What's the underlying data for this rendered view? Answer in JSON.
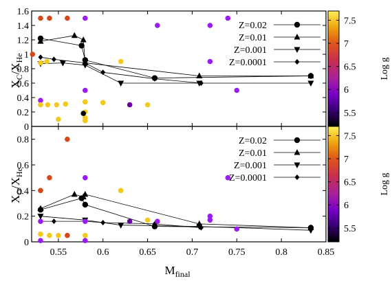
{
  "chart_data": [
    {
      "type": "scatter",
      "panel": "top",
      "ylabel": "X_C/X_He",
      "ylabel_main": "X",
      "ylabel_sub1": "C",
      "ylabel_sep": "/X",
      "ylabel_sub2": "He",
      "xlim": [
        0.52,
        0.85
      ],
      "ylim": [
        0,
        1.6
      ],
      "yticks": [
        "0",
        "0.2",
        "0.4",
        "0.6",
        "0.8",
        "1",
        "1.2",
        "1.4",
        "1.6"
      ],
      "legend_placement": "top-right",
      "series": [
        {
          "name": "Z=0.02",
          "marker": "circle",
          "x": [
            0.53,
            0.576,
            0.58,
            0.658,
            0.833
          ],
          "y": [
            1.22,
            1.12,
            0.92,
            0.67,
            0.7
          ]
        },
        {
          "name": "Z=0.01",
          "marker": "triangle",
          "x": [
            0.53,
            0.568,
            0.578,
            0.58,
            0.708,
            0.833
          ],
          "y": [
            1.18,
            1.26,
            1.2,
            0.88,
            0.7,
            0.7
          ]
        },
        {
          "name": "Z=0.001",
          "marker": "triangle-down",
          "x": [
            0.53,
            0.555,
            0.58,
            0.62,
            0.708,
            0.833
          ],
          "y": [
            0.87,
            0.88,
            0.85,
            0.6,
            0.6,
            0.6
          ]
        },
        {
          "name": "Z=0.0001",
          "marker": "diamond",
          "x": [
            0.53,
            0.545,
            0.58,
            0.6,
            0.658,
            0.71
          ],
          "y": [
            0.96,
            0.93,
            0.88,
            0.75,
            0.66,
            0.6
          ]
        }
      ],
      "colored_points": [
        {
          "x": 0.521,
          "y": 1.0,
          "logg": 6.85
        },
        {
          "x": 0.53,
          "y": 1.5,
          "logg": 6.85
        },
        {
          "x": 0.54,
          "y": 1.5,
          "logg": 6.85
        },
        {
          "x": 0.56,
          "y": 1.5,
          "logg": 6.85
        },
        {
          "x": 0.58,
          "y": 1.5,
          "logg": 5.8
        },
        {
          "x": 0.661,
          "y": 1.4,
          "logg": 5.8
        },
        {
          "x": 0.72,
          "y": 1.4,
          "logg": 5.8
        },
        {
          "x": 0.74,
          "y": 1.5,
          "logg": 5.8
        },
        {
          "x": 0.53,
          "y": 0.88,
          "logg": 7.5
        },
        {
          "x": 0.537,
          "y": 0.9,
          "logg": 7.5
        },
        {
          "x": 0.62,
          "y": 0.9,
          "logg": 7.4
        },
        {
          "x": 0.72,
          "y": 0.9,
          "logg": 5.8
        },
        {
          "x": 0.53,
          "y": 0.36,
          "logg": 5.8
        },
        {
          "x": 0.58,
          "y": 0.5,
          "logg": 5.8
        },
        {
          "x": 0.58,
          "y": 0.34,
          "logg": 7.5
        },
        {
          "x": 0.53,
          "y": 0.3,
          "logg": 7.5
        },
        {
          "x": 0.538,
          "y": 0.3,
          "logg": 7.5
        },
        {
          "x": 0.548,
          "y": 0.3,
          "logg": 7.5
        },
        {
          "x": 0.558,
          "y": 0.31,
          "logg": 7.5
        },
        {
          "x": 0.6,
          "y": 0.33,
          "logg": 7.5
        },
        {
          "x": 0.63,
          "y": 0.3,
          "logg": 5.6
        },
        {
          "x": 0.65,
          "y": 0.3,
          "logg": 7.5
        },
        {
          "x": 0.75,
          "y": 0.5,
          "logg": 5.8
        },
        {
          "x": 0.58,
          "y": 0.2,
          "logg": 7.5
        },
        {
          "x": 0.58,
          "y": 0.12,
          "logg": 7.5
        },
        {
          "x": 0.55,
          "y": 0.1,
          "logg": 7.5
        },
        {
          "x": 0.58,
          "y": 0.08,
          "logg": 7.5
        },
        {
          "x": 0.578,
          "y": 0.18,
          "logg": 5.3
        }
      ]
    },
    {
      "type": "scatter",
      "panel": "bottom",
      "ylabel": "X_O/X_He",
      "ylabel_main": "X",
      "ylabel_sub1": "O",
      "ylabel_sep": "/X",
      "ylabel_sub2": "He",
      "xlabel": "M_final",
      "xlabel_main": "M",
      "xlabel_sub": "final",
      "xlim": [
        0.52,
        0.85
      ],
      "ylim": [
        0,
        0.9
      ],
      "xticks": [
        "0.55",
        "0.6",
        "0.65",
        "0.7",
        "0.75",
        "0.8",
        "0.85"
      ],
      "yticks": [
        "0",
        "0.2",
        "0.4",
        "0.6",
        "0.8"
      ],
      "legend_placement": "top-right",
      "series": [
        {
          "name": "Z=0.02",
          "marker": "circle",
          "x": [
            0.53,
            0.576,
            0.58,
            0.658,
            0.833
          ],
          "y": [
            0.25,
            0.34,
            0.29,
            0.12,
            0.11
          ]
        },
        {
          "name": "Z=0.01",
          "marker": "triangle",
          "x": [
            0.53,
            0.568,
            0.578,
            0.58,
            0.708,
            0.833
          ],
          "y": [
            0.26,
            0.37,
            0.35,
            0.37,
            0.14,
            0.11
          ]
        },
        {
          "name": "Z=0.001",
          "marker": "triangle-down",
          "x": [
            0.53,
            0.58,
            0.62,
            0.708,
            0.833
          ],
          "y": [
            0.2,
            0.17,
            0.13,
            0.12,
            0.09
          ]
        },
        {
          "name": "Z=0.0001",
          "marker": "diamond",
          "x": [
            0.53,
            0.545,
            0.58,
            0.6,
            0.658,
            0.71
          ],
          "y": [
            0.16,
            0.16,
            0.16,
            0.15,
            0.14,
            0.11
          ]
        }
      ],
      "colored_points": [
        {
          "x": 0.56,
          "y": 0.8,
          "logg": 6.85
        },
        {
          "x": 0.54,
          "y": 0.5,
          "logg": 6.85
        },
        {
          "x": 0.53,
          "y": 0.4,
          "logg": 6.85
        },
        {
          "x": 0.58,
          "y": 0.5,
          "logg": 5.8
        },
        {
          "x": 0.74,
          "y": 0.5,
          "logg": 5.8
        },
        {
          "x": 0.62,
          "y": 0.4,
          "logg": 7.4
        },
        {
          "x": 0.72,
          "y": 0.2,
          "logg": 5.8
        },
        {
          "x": 0.72,
          "y": 0.17,
          "logg": 5.8
        },
        {
          "x": 0.53,
          "y": 0.16,
          "logg": 5.8
        },
        {
          "x": 0.58,
          "y": 0.16,
          "logg": 5.8
        },
        {
          "x": 0.63,
          "y": 0.16,
          "logg": 5.6
        },
        {
          "x": 0.661,
          "y": 0.16,
          "logg": 5.8
        },
        {
          "x": 0.65,
          "y": 0.17,
          "logg": 7.5
        },
        {
          "x": 0.75,
          "y": 0.1,
          "logg": 5.8
        },
        {
          "x": 0.53,
          "y": 0.06,
          "logg": 7.5
        },
        {
          "x": 0.54,
          "y": 0.05,
          "logg": 7.5
        },
        {
          "x": 0.55,
          "y": 0.05,
          "logg": 7.5
        },
        {
          "x": 0.56,
          "y": 0.05,
          "logg": 6.85
        },
        {
          "x": 0.58,
          "y": 0.05,
          "logg": 7.5
        },
        {
          "x": 0.53,
          "y": 0.01,
          "logg": 5.8
        },
        {
          "x": 0.58,
          "y": 0.01,
          "logg": 5.8
        }
      ]
    }
  ],
  "colorbar": {
    "label": "Log g",
    "range": [
      5.2,
      7.7
    ],
    "ticks": [
      "5.5",
      "6",
      "6.5",
      "7",
      "7.5"
    ]
  },
  "palette": {
    "5.2": "#000000",
    "5.6": "#6a00a8",
    "5.8": "#9a1cf0",
    "6.3": "#c2205f",
    "6.85": "#d4481a",
    "7.2": "#ea8f08",
    "7.5": "#f2c91c",
    "7.7": "#fff05a"
  }
}
